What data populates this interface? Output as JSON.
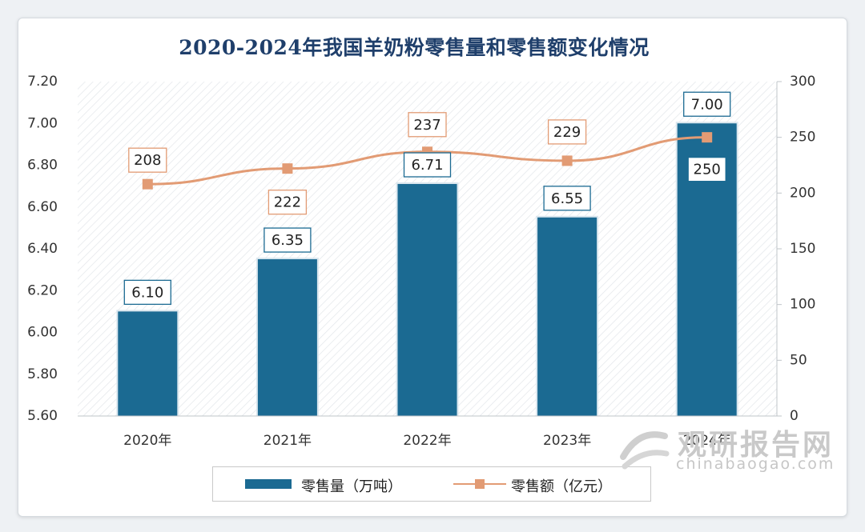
{
  "chart_data": {
    "type": "bar",
    "title": "2020-2024年我国羊奶粉零售量和零售额变化情况",
    "categories": [
      "2020年",
      "2021年",
      "2022年",
      "2023年",
      "2024年"
    ],
    "series": [
      {
        "name": "零售量（万吨）",
        "type": "bar",
        "axis": "left",
        "values": [
          6.1,
          6.35,
          6.71,
          6.55,
          7.0
        ],
        "labels": [
          "6.10",
          "6.35",
          "6.71",
          "6.55",
          "7.00"
        ]
      },
      {
        "name": "零售额（亿元）",
        "type": "line",
        "axis": "right",
        "values": [
          208,
          222,
          237,
          229,
          250
        ],
        "labels": [
          "208",
          "222",
          "237",
          "229",
          "250"
        ]
      }
    ],
    "y_left": {
      "lim": [
        5.6,
        7.2
      ],
      "ticks": [
        "5.60",
        "5.80",
        "6.00",
        "6.20",
        "6.40",
        "6.60",
        "6.80",
        "7.00",
        "7.20"
      ]
    },
    "y_right": {
      "lim": [
        0,
        300
      ],
      "ticks": [
        "0",
        "50",
        "100",
        "150",
        "200",
        "250",
        "300"
      ]
    },
    "grid": false,
    "legend_position": "bottom",
    "colors": {
      "bar": "#1b6a92",
      "line": "#e29b74",
      "title": "#1f3f6b"
    }
  },
  "watermark": {
    "cn": "观研报告网",
    "en": "chinabaogao.com"
  }
}
